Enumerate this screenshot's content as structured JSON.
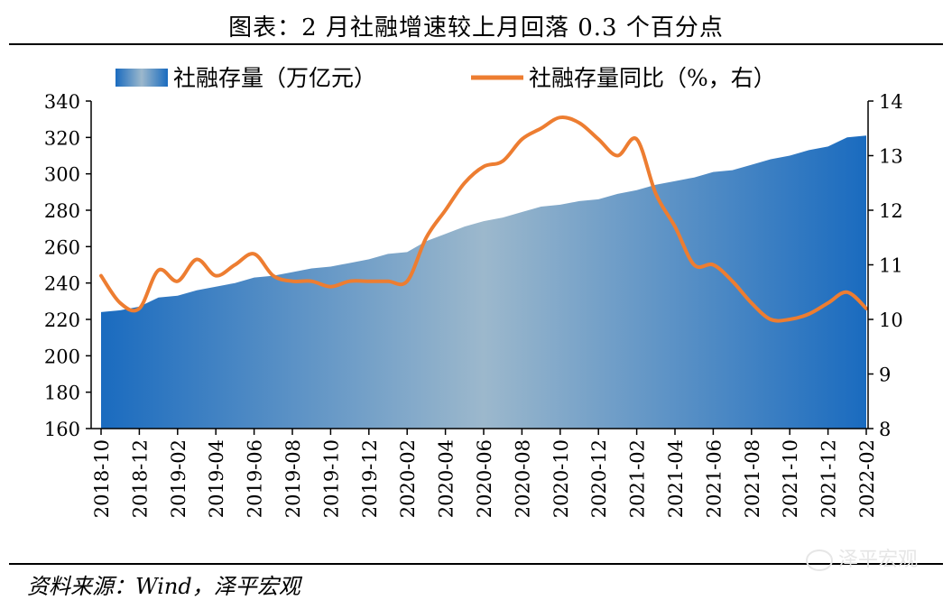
{
  "title": "图表：2 月社融增速较上月回落 0.3 个百分点",
  "source": "资料来源：Wind，泽平宏观",
  "watermark": "泽平宏观",
  "chart_data": {
    "type": "area",
    "x": [
      "2018-10",
      "2018-11",
      "2018-12",
      "2019-01",
      "2019-02",
      "2019-03",
      "2019-04",
      "2019-05",
      "2019-06",
      "2019-07",
      "2019-08",
      "2019-09",
      "2019-10",
      "2019-11",
      "2019-12",
      "2020-01",
      "2020-02",
      "2020-03",
      "2020-04",
      "2020-05",
      "2020-06",
      "2020-07",
      "2020-08",
      "2020-09",
      "2020-10",
      "2020-11",
      "2020-12",
      "2021-01",
      "2021-02",
      "2021-03",
      "2021-04",
      "2021-05",
      "2021-06",
      "2021-07",
      "2021-08",
      "2021-09",
      "2021-10",
      "2021-11",
      "2021-12",
      "2022-01",
      "2022-02"
    ],
    "x_tick_labels": [
      "2018-10",
      "2018-12",
      "2019-02",
      "2019-04",
      "2019-06",
      "2019-08",
      "2019-10",
      "2019-12",
      "2020-02",
      "2020-04",
      "2020-06",
      "2020-08",
      "2020-10",
      "2020-12",
      "2021-02",
      "2021-04",
      "2021-06",
      "2021-08",
      "2021-10",
      "2021-12",
      "2022-02"
    ],
    "series": [
      {
        "name": "社融存量（万亿元）",
        "type": "area",
        "axis": "left",
        "color": "#1a6bbf",
        "values": [
          224,
          225,
          227,
          232,
          233,
          236,
          238,
          240,
          243,
          244,
          246,
          248,
          249,
          251,
          253,
          256,
          257,
          263,
          267,
          271,
          274,
          276,
          279,
          282,
          283,
          285,
          286,
          289,
          291,
          294,
          296,
          298,
          301,
          302,
          305,
          308,
          310,
          313,
          315,
          320,
          321
        ]
      },
      {
        "name": "社融存量同比（%，右）",
        "type": "line",
        "axis": "right",
        "color": "#ed7d31",
        "values": [
          10.8,
          10.3,
          10.2,
          10.9,
          10.7,
          11.1,
          10.8,
          11.0,
          11.2,
          10.8,
          10.7,
          10.7,
          10.6,
          10.7,
          10.7,
          10.7,
          10.7,
          11.5,
          12.0,
          12.5,
          12.8,
          12.9,
          13.3,
          13.5,
          13.7,
          13.6,
          13.3,
          13.0,
          13.3,
          12.3,
          11.7,
          11.0,
          11.0,
          10.7,
          10.3,
          10.0,
          10.0,
          10.1,
          10.3,
          10.5,
          10.2
        ]
      }
    ],
    "y_left": {
      "ylim": [
        160,
        340
      ],
      "ticks": [
        160,
        180,
        200,
        220,
        240,
        260,
        280,
        300,
        320,
        340
      ]
    },
    "y_right": {
      "ylim": [
        8,
        14
      ],
      "ticks": [
        8,
        9,
        10,
        11,
        12,
        13,
        14
      ]
    },
    "legend": "top",
    "grid": false
  }
}
